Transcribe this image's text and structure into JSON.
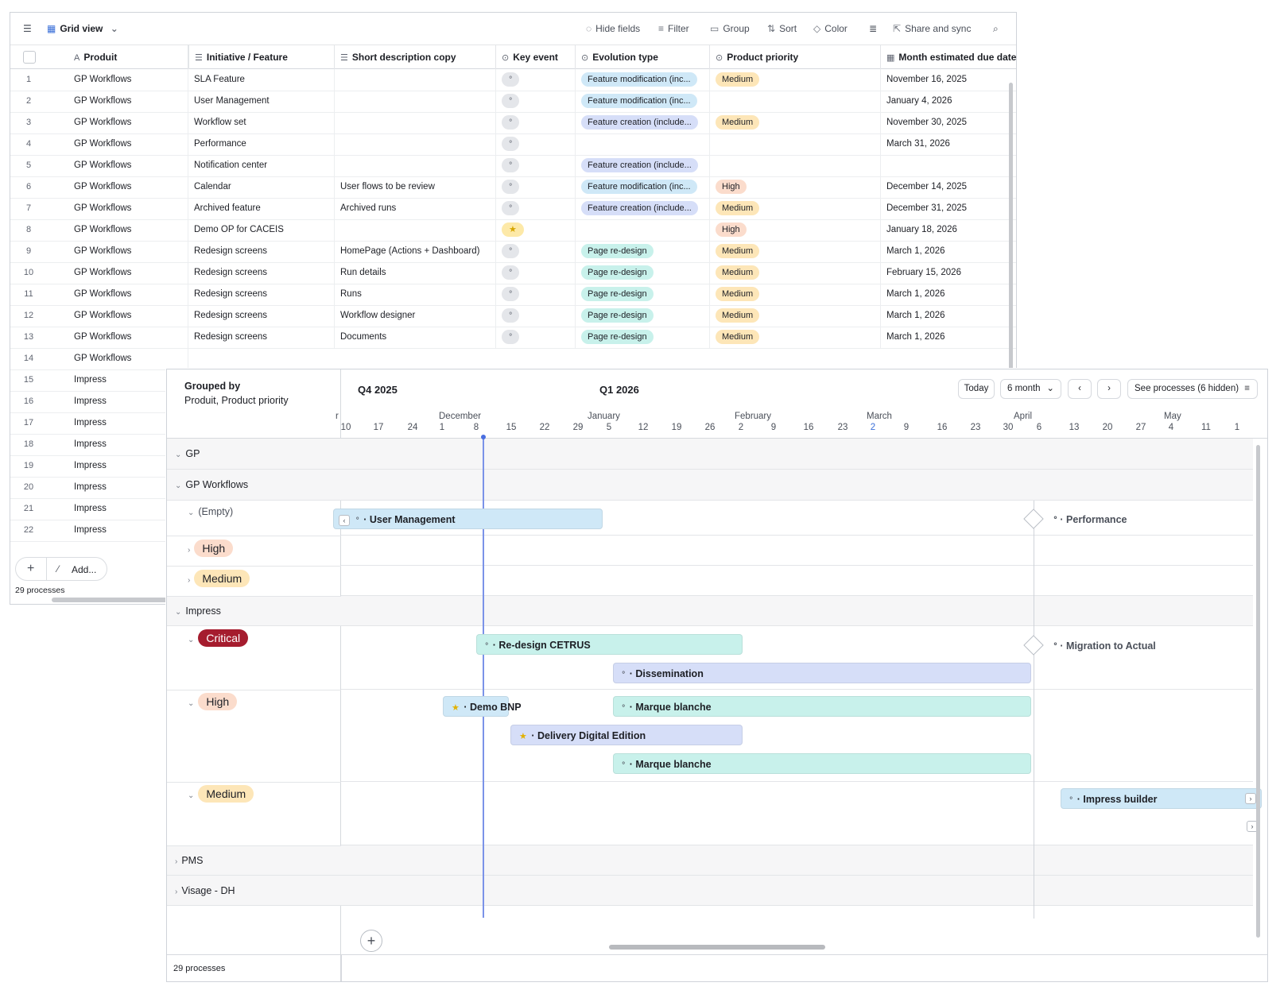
{
  "grid": {
    "toolbar": {
      "view_label": "Grid view",
      "hide_fields": "Hide fields",
      "filter": "Filter",
      "group": "Group",
      "sort": "Sort",
      "color": "Color",
      "share": "Share and sync"
    },
    "columns": [
      "Produit",
      "Initiative / Feature",
      "Short description copy",
      "Key event",
      "Evolution type",
      "Product priority",
      "Month estimated due date"
    ],
    "rows": [
      {
        "num": "1",
        "produit": "GP Workflows",
        "feature": "SLA Feature",
        "desc": "",
        "key": "grey",
        "evo": "Feature modification (inc...",
        "evo_color": "blue",
        "prio": "Medium",
        "due": "November 16, 2025"
      },
      {
        "num": "2",
        "produit": "GP Workflows",
        "feature": "User Management",
        "desc": "",
        "key": "grey",
        "evo": "Feature modification (inc...",
        "evo_color": "blue",
        "prio": "",
        "due": "January 4, 2026"
      },
      {
        "num": "3",
        "produit": "GP Workflows",
        "feature": "Workflow set",
        "desc": "",
        "key": "grey",
        "evo": "Feature creation (include...",
        "evo_color": "lav",
        "prio": "Medium",
        "due": "November 30, 2025"
      },
      {
        "num": "4",
        "produit": "GP Workflows",
        "feature": "Performance",
        "desc": "",
        "key": "grey",
        "evo": "",
        "evo_color": "",
        "prio": "",
        "due": "March 31, 2026"
      },
      {
        "num": "5",
        "produit": "GP Workflows",
        "feature": "Notification center",
        "desc": "",
        "key": "grey",
        "evo": "Feature creation (include...",
        "evo_color": "lav",
        "prio": "",
        "due": ""
      },
      {
        "num": "6",
        "produit": "GP Workflows",
        "feature": "Calendar",
        "desc": "User flows to be review",
        "key": "grey",
        "evo": "Feature modification (inc...",
        "evo_color": "blue",
        "prio": "High",
        "due": "December 14, 2025"
      },
      {
        "num": "7",
        "produit": "GP Workflows",
        "feature": "Archived feature",
        "desc": "Archived runs",
        "key": "grey",
        "evo": "Feature creation (include...",
        "evo_color": "lav",
        "prio": "Medium",
        "due": "December 31, 2025"
      },
      {
        "num": "8",
        "produit": "GP Workflows",
        "feature": "Demo OP for CACEIS",
        "desc": "",
        "key": "star",
        "evo": "",
        "evo_color": "",
        "prio": "High",
        "due": "January 18, 2026"
      },
      {
        "num": "9",
        "produit": "GP Workflows",
        "feature": "Redesign screens",
        "desc": "HomePage (Actions + Dashboard)",
        "key": "grey",
        "evo": "Page re-design",
        "evo_color": "teal",
        "prio": "Medium",
        "due": "March 1, 2026"
      },
      {
        "num": "10",
        "produit": "GP Workflows",
        "feature": "Redesign screens",
        "desc": "Run details",
        "key": "grey",
        "evo": "Page re-design",
        "evo_color": "teal",
        "prio": "Medium",
        "due": "February 15, 2026"
      },
      {
        "num": "11",
        "produit": "GP Workflows",
        "feature": "Redesign screens",
        "desc": "Runs",
        "key": "grey",
        "evo": "Page re-design",
        "evo_color": "teal",
        "prio": "Medium",
        "due": "March 1, 2026"
      },
      {
        "num": "12",
        "produit": "GP Workflows",
        "feature": "Redesign screens",
        "desc": "Workflow designer",
        "key": "grey",
        "evo": "Page re-design",
        "evo_color": "teal",
        "prio": "Medium",
        "due": "March 1, 2026"
      },
      {
        "num": "13",
        "produit": "GP Workflows",
        "feature": "Redesign screens",
        "desc": "Documents",
        "key": "grey",
        "evo": "Page re-design",
        "evo_color": "teal",
        "prio": "Medium",
        "due": "March 1, 2026"
      },
      {
        "num": "14",
        "produit": "GP Workflows",
        "feature": "",
        "desc": "",
        "key": "",
        "evo": "",
        "evo_color": "",
        "prio": "",
        "due": ""
      },
      {
        "num": "15",
        "produit": "Impress"
      },
      {
        "num": "16",
        "produit": "Impress"
      },
      {
        "num": "17",
        "produit": "Impress"
      },
      {
        "num": "18",
        "produit": "Impress"
      },
      {
        "num": "19",
        "produit": "Impress"
      },
      {
        "num": "20",
        "produit": "Impress"
      },
      {
        "num": "21",
        "produit": "Impress"
      },
      {
        "num": "22",
        "produit": "Impress"
      }
    ],
    "add_label": "Add...",
    "count": "29 processes"
  },
  "timeline": {
    "grouped_title": "Grouped by",
    "grouped_sub": "Produit, Product priority",
    "quarter_1": "Q4 2025",
    "quarter_2": "Q1 2026",
    "today_btn": "Today",
    "range_btn": "6 month",
    "see_processes": "See processes (6 hidden)",
    "months": [
      "r",
      "December",
      "January",
      "February",
      "March",
      "April",
      "May"
    ],
    "days": [
      "10",
      "17",
      "24",
      "1",
      "8",
      "15",
      "22",
      "29",
      "5",
      "12",
      "19",
      "26",
      "2",
      "9",
      "16",
      "23",
      "2",
      "9",
      "16",
      "23",
      "30",
      "6",
      "13",
      "20",
      "27",
      "4",
      "11",
      "1"
    ],
    "groups": {
      "gp": "GP",
      "gp_workflows": "GP Workflows",
      "empty": "(Empty)",
      "high": "High",
      "medium": "Medium",
      "impress": "Impress",
      "critical": "Critical",
      "impress_high": "High",
      "impress_medium": "Medium",
      "pms": "PMS",
      "visage": "Visage - DH"
    },
    "bars": {
      "user_management": "User Management",
      "performance": "Performance",
      "redesign_cetrus": "Re-design CETRUS",
      "migration": "Migration to Actual",
      "dissemination": "Dissemination",
      "demo_bnp": "Demo BNP",
      "marque_blanche_1": "Marque blanche",
      "delivery": "Delivery Digital Edition",
      "marque_blanche_2": "Marque blanche",
      "impress_builder": "Impress builder"
    },
    "count": "29 processes"
  }
}
